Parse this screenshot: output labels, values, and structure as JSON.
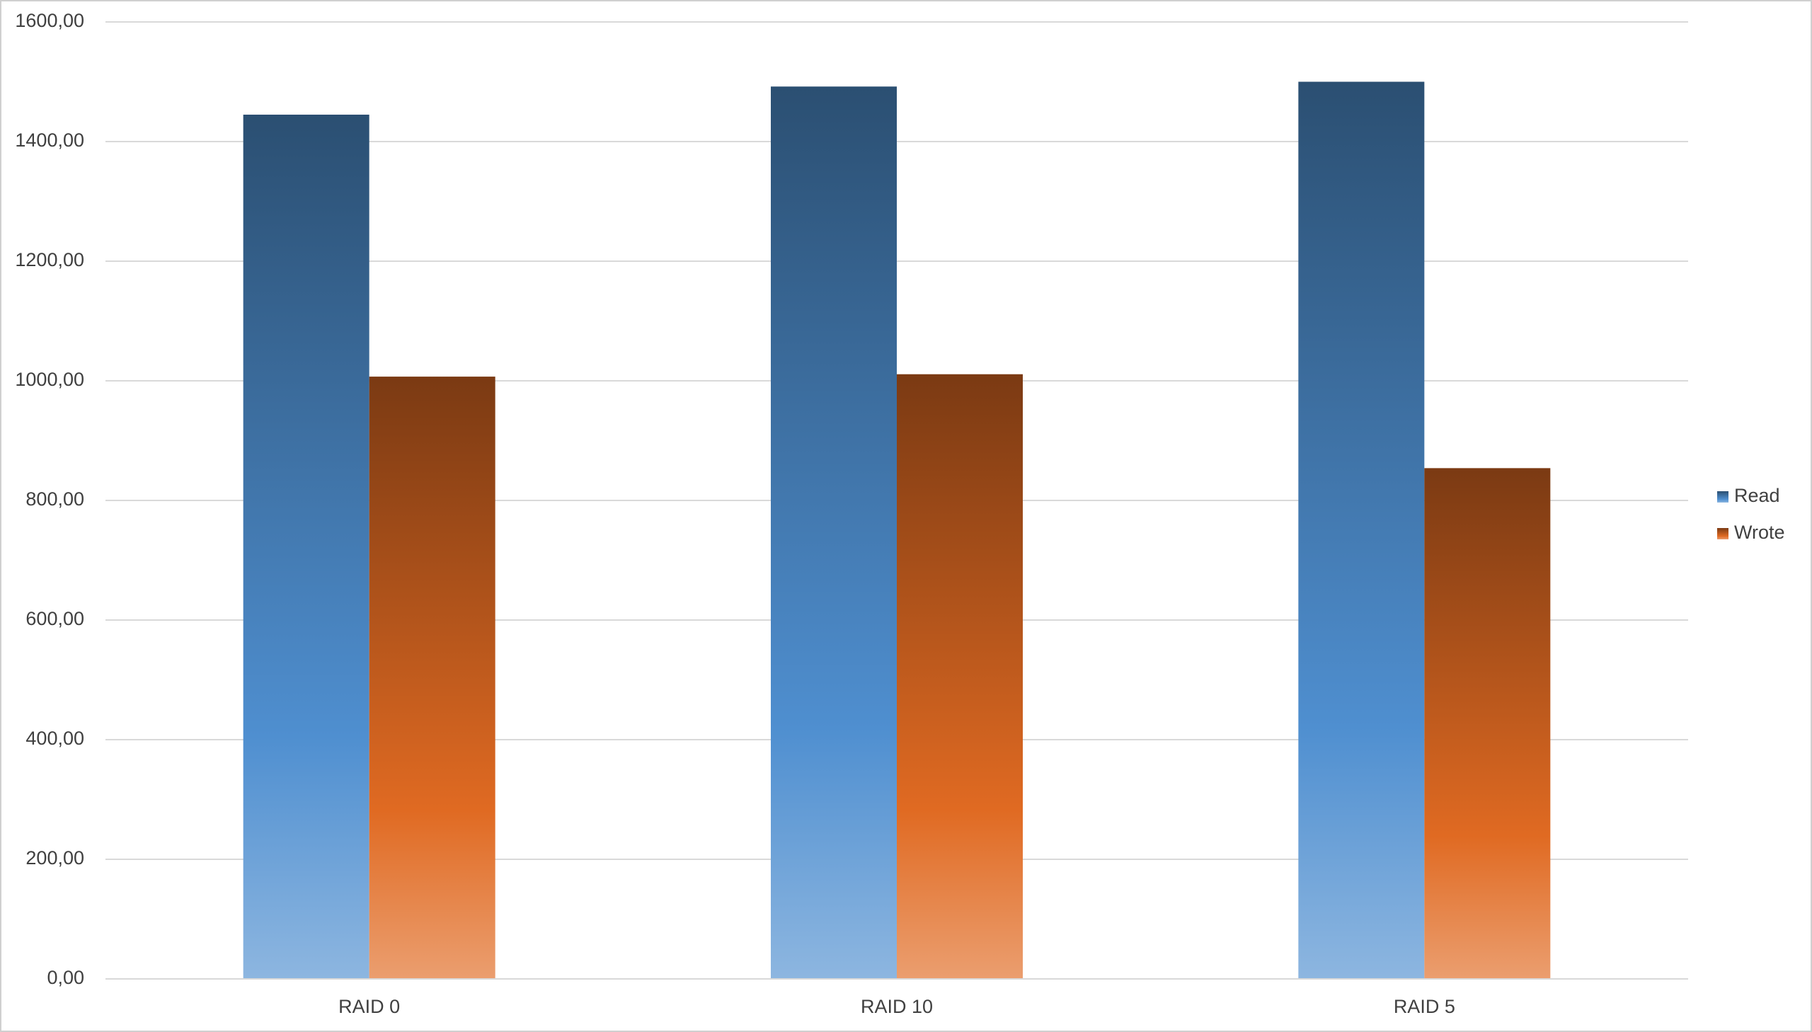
{
  "chart_data": {
    "type": "bar",
    "categories": [
      "RAID 0",
      "RAID 10",
      "RAID 5"
    ],
    "series": [
      {
        "name": "Read",
        "color": "#4f8fd0",
        "values": [
          1445,
          1492,
          1500
        ]
      },
      {
        "name": "Wrote",
        "color": "#e06a22",
        "values": [
          1007,
          1011,
          854
        ]
      }
    ],
    "ylim": [
      0,
      1600
    ],
    "yticks": [
      {
        "value": 0,
        "label": "0,00"
      },
      {
        "value": 200,
        "label": "200,00"
      },
      {
        "value": 400,
        "label": "400,00"
      },
      {
        "value": 600,
        "label": "600,00"
      },
      {
        "value": 800,
        "label": "800,00"
      },
      {
        "value": 1000,
        "label": "1000,00"
      },
      {
        "value": 1200,
        "label": "1200,00"
      },
      {
        "value": 1400,
        "label": "1400,00"
      },
      {
        "value": 1600,
        "label": "1600,00"
      }
    ],
    "grid": true,
    "legend": "right"
  }
}
